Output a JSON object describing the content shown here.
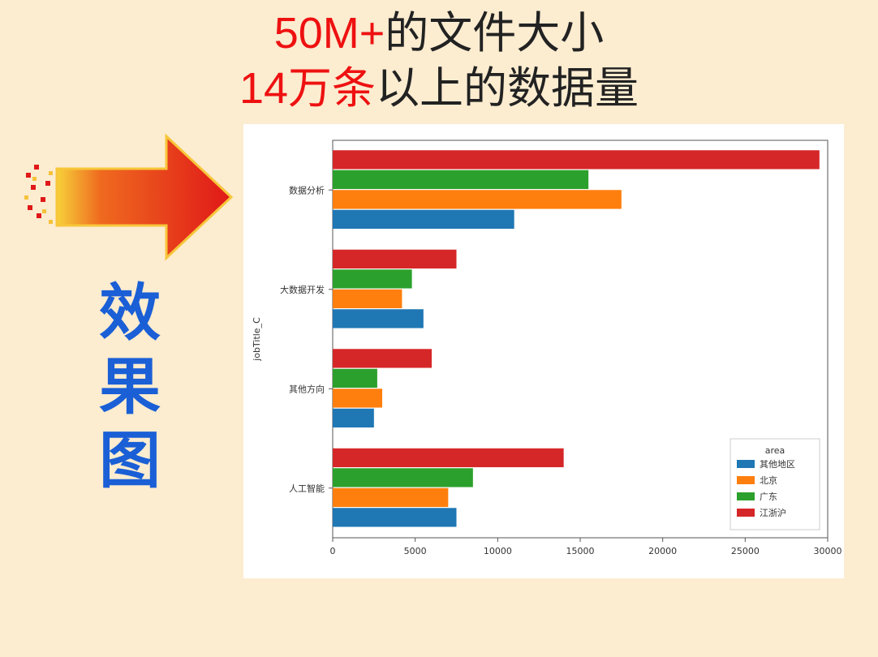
{
  "page": {
    "background_color": "#fcecd0"
  },
  "titles": {
    "line1_red": "50M+",
    "line1_black": "的文件大小",
    "line2_red": "14万条",
    "line2_black": "以上的数据量",
    "fontsize_pt": 40,
    "color_red": "#ee1111",
    "color_black": "#222222"
  },
  "arrow": {
    "fill_start": "#f7d13a",
    "fill_end": "#e01818",
    "stroke": "#f7c63a",
    "particle_color": "#e01818"
  },
  "vertical_label": {
    "text": "效果图",
    "chars": [
      "效",
      "果",
      "图"
    ],
    "color": "#1a5fd6",
    "fontsize_pt": 57,
    "font_weight": "bold"
  },
  "chart": {
    "type": "grouped_bar_horizontal",
    "background_color": "#ffffff",
    "axes_border_color": "#555555",
    "y_label": "jobTitle_C",
    "y_label_fontsize": 11,
    "tick_fontsize": 11,
    "categories": [
      "数据分析",
      "大数据开发",
      "其他方向",
      "人工智能"
    ],
    "series": [
      {
        "name": "其他地区",
        "color": "#1f77b4"
      },
      {
        "name": "北京",
        "color": "#ff7f0e"
      },
      {
        "name": "广东",
        "color": "#2ca02c"
      },
      {
        "name": "江浙沪",
        "color": "#d62728"
      }
    ],
    "data": {
      "数据分析": {
        "其他地区": 11000,
        "北京": 17500,
        "广东": 15500,
        "江浙沪": 29500
      },
      "大数据开发": {
        "其他地区": 5500,
        "北京": 4200,
        "广东": 4800,
        "江浙沪": 7500
      },
      "其他方向": {
        "其他地区": 2500,
        "北京": 3000,
        "广东": 2700,
        "江浙沪": 6000
      },
      "人工智能": {
        "其他地区": 7500,
        "北京": 7000,
        "广东": 8500,
        "江浙沪": 14000
      }
    },
    "x_axis": {
      "min": 0,
      "max": 30000,
      "tick_step": 5000
    },
    "bar_group_height": 0.8,
    "legend": {
      "title": "area",
      "position": "lower_right",
      "border_color": "#cccccc",
      "title_fontsize": 11,
      "item_fontsize": 11
    }
  }
}
